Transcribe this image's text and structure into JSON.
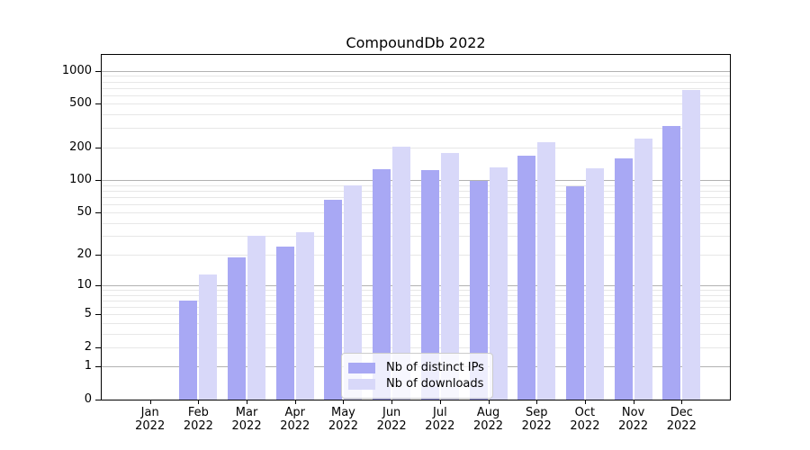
{
  "window": {
    "title": "CompoundDb 2022"
  },
  "chart_data": {
    "type": "bar",
    "title": "CompoundDb 2022",
    "xlabel": "",
    "ylabel": "",
    "categories": [
      "Jan 2022",
      "Feb 2022",
      "Mar 2022",
      "Apr 2022",
      "May 2022",
      "Jun 2022",
      "Jul 2022",
      "Aug 2022",
      "Sep 2022",
      "Oct 2022",
      "Nov 2022",
      "Dec 2022"
    ],
    "series": [
      {
        "name": "Nb of distinct IPs",
        "color": "#a8a8f4",
        "values": [
          0,
          7,
          19,
          24,
          66,
          127,
          124,
          99,
          168,
          87,
          159,
          311
        ]
      },
      {
        "name": "Nb of downloads",
        "color": "#d8d8f9",
        "values": [
          0,
          13,
          30,
          33,
          90,
          203,
          178,
          130,
          222,
          129,
          242,
          674
        ]
      }
    ],
    "yscale": "log1p",
    "yticks": [
      0,
      1,
      2,
      5,
      10,
      20,
      50,
      100,
      200,
      500,
      1000
    ],
    "ylim": [
      0,
      1400
    ],
    "grid": "horizontal major at powers of 10, minor at 2-9 per decade",
    "legend_position": "lower center inside plot",
    "colors": {
      "major_grid": "#b2b2b2",
      "minor_grid": "#e7e7e7",
      "spine": "#000000",
      "legend_border": "#cccccc"
    }
  }
}
